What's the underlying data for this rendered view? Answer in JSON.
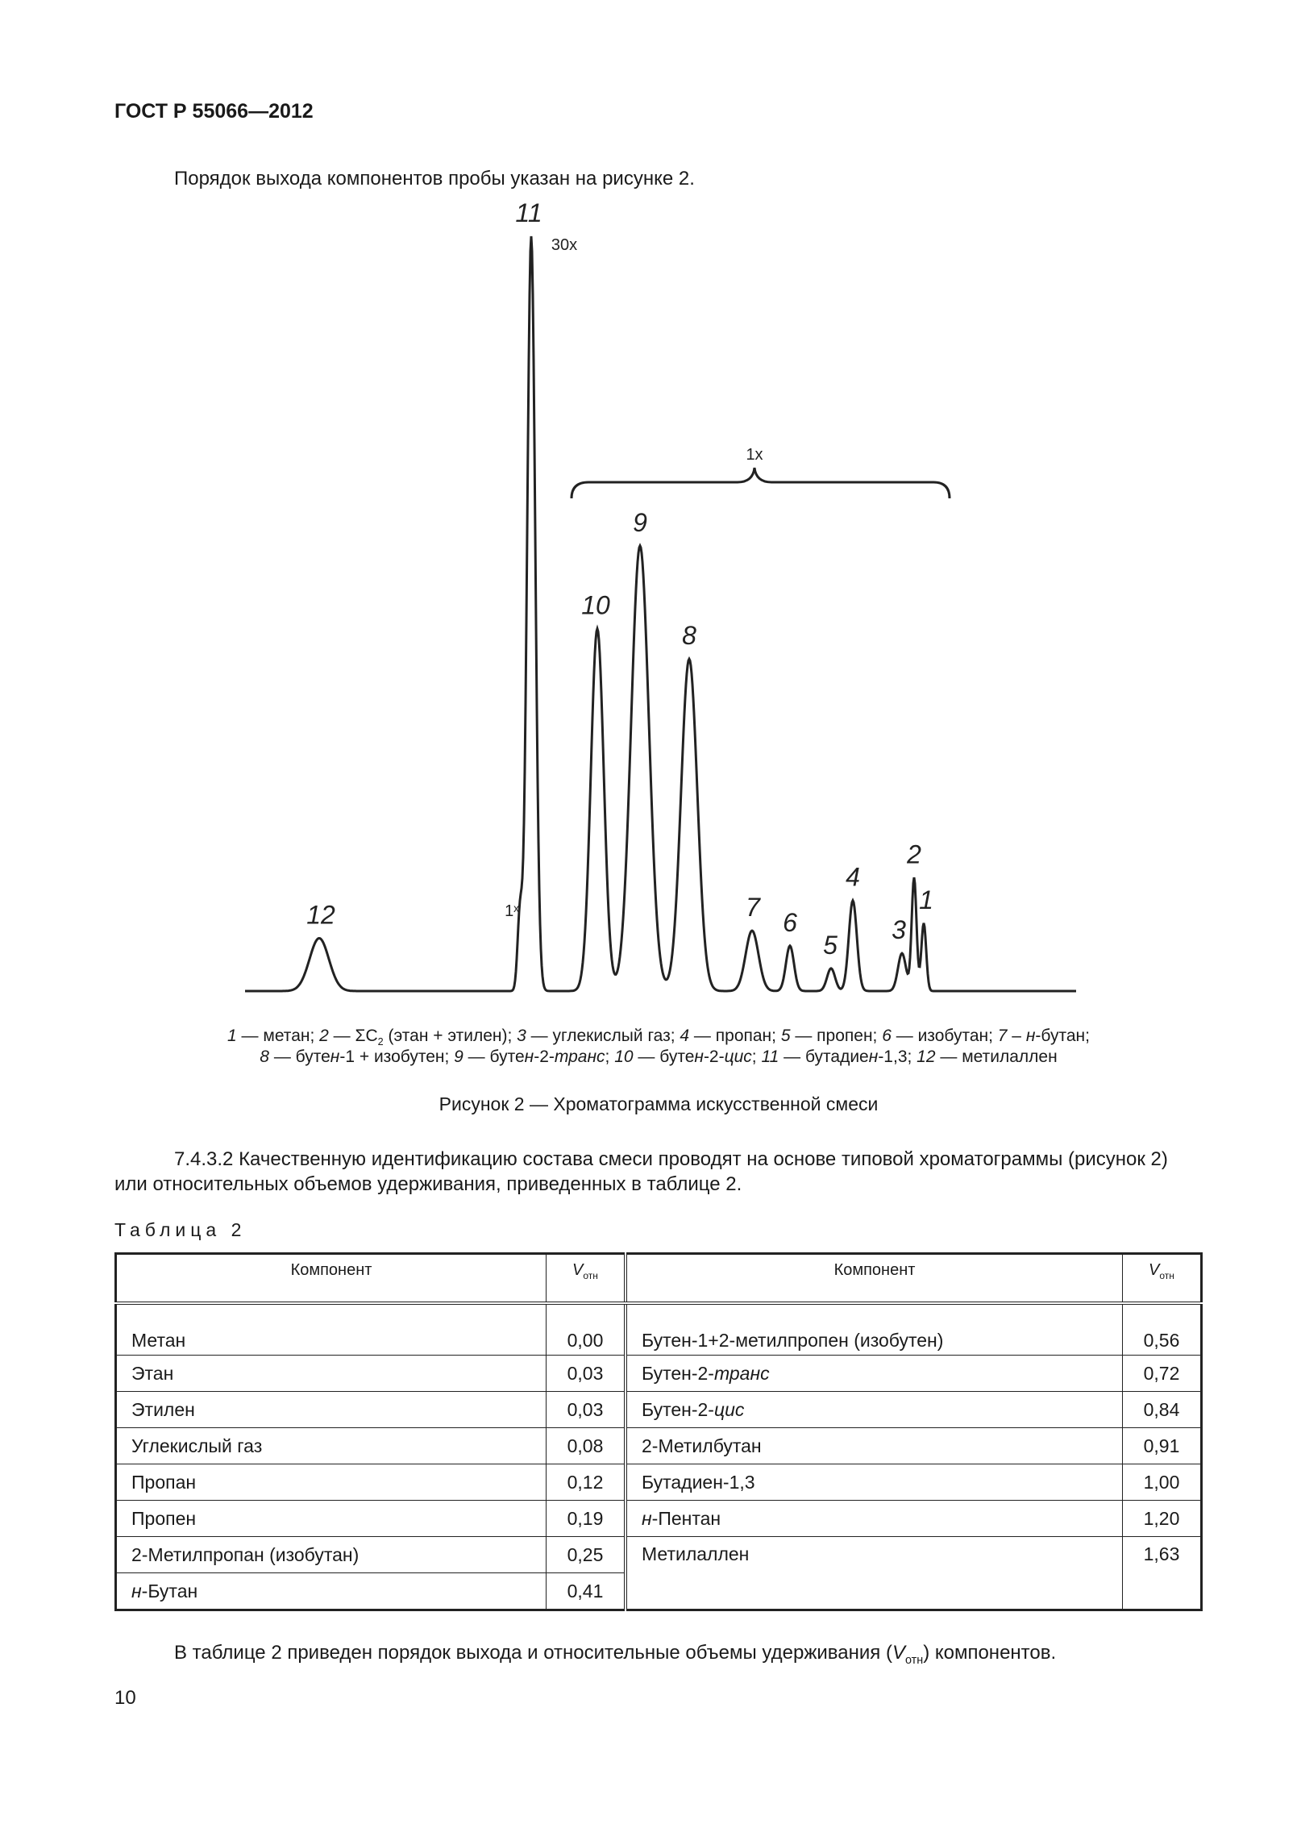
{
  "header": {
    "doc_id": "ГОСТ Р 55066—2012"
  },
  "intro": "Порядок выхода компонентов пробы указан на рисунке 2.",
  "chart_data": {
    "type": "line",
    "title": "",
    "peaks": [
      {
        "label": "12",
        "relative_height": 0.07
      },
      {
        "label": "1ˣ",
        "relative_height": 0.1
      },
      {
        "label": "11",
        "relative_height": 1.0
      },
      {
        "label": "10",
        "relative_height": 0.48
      },
      {
        "label": "9",
        "relative_height": 0.59
      },
      {
        "label": "8",
        "relative_height": 0.44
      },
      {
        "label": "7",
        "relative_height": 0.08
      },
      {
        "label": "6",
        "relative_height": 0.06
      },
      {
        "label": "5",
        "relative_height": 0.03
      },
      {
        "label": "4",
        "relative_height": 0.12
      },
      {
        "label": "3",
        "relative_height": 0.05
      },
      {
        "label": "2",
        "relative_height": 0.15
      },
      {
        "label": "1",
        "relative_height": 0.09
      }
    ],
    "annotations": {
      "scale_main": "30",
      "scale_group": "1",
      "scale_small": "1",
      "superscript": "x"
    }
  },
  "legend": {
    "line1": "1 — метан; 2 — ΣC₂ (этан + этилен); 3 — углекислый газ; 4 — пропан; 5 — пропен; 6 — изобутан; 7 – н-бутан;",
    "line2": "8 — бутен-1 + изобутен; 9 — бутен-2-транс; 10 — бутен-2-цис; 11 — бутадиен-1,3; 12 — метилаллен"
  },
  "figure_caption": "Рисунок 2 — Хроматограмма искусственной смеси",
  "paragraph": "7.4.3.2 Качественную идентификацию состава смеси проводят на основе типовой хроматограммы (рисунок 2) или относительных объемов удерживания, приведенных в таблице 2.",
  "table": {
    "caption": "Таблица 2",
    "col_component": "Компонент",
    "col_v": "V",
    "col_v_sub": "отн",
    "left": [
      {
        "name": "Метан",
        "v": "0,00"
      },
      {
        "name": "Этан",
        "v": "0,03"
      },
      {
        "name": "Этилен",
        "v": "0,03"
      },
      {
        "name": "Углекислый газ",
        "v": "0,08"
      },
      {
        "name": "Пропан",
        "v": "0,12"
      },
      {
        "name": "Пропен",
        "v": "0,19"
      },
      {
        "name": "2-Метилпропан (изобутан)",
        "v": "0,25"
      },
      {
        "name": "н-Бутан",
        "v": "0,41"
      }
    ],
    "right": [
      {
        "name": "Бутен-1+2-метилпропен (изобутен)",
        "v": "0,56"
      },
      {
        "name": "Бутен-2-транс",
        "v": "0,72"
      },
      {
        "name": "Бутен-2-цис",
        "v": "0,84"
      },
      {
        "name": "2-Метилбутан",
        "v": "0,91"
      },
      {
        "name": "Бутадиен-1,3",
        "v": "1,00"
      },
      {
        "name": "н-Пентан",
        "v": "1,20"
      },
      {
        "name": "Метилаллен",
        "v": "1,63"
      }
    ]
  },
  "closing": "В таблице 2 приведен порядок выхода и относительные объемы удерживания (Vотн) компонентов.",
  "page_number": "10"
}
